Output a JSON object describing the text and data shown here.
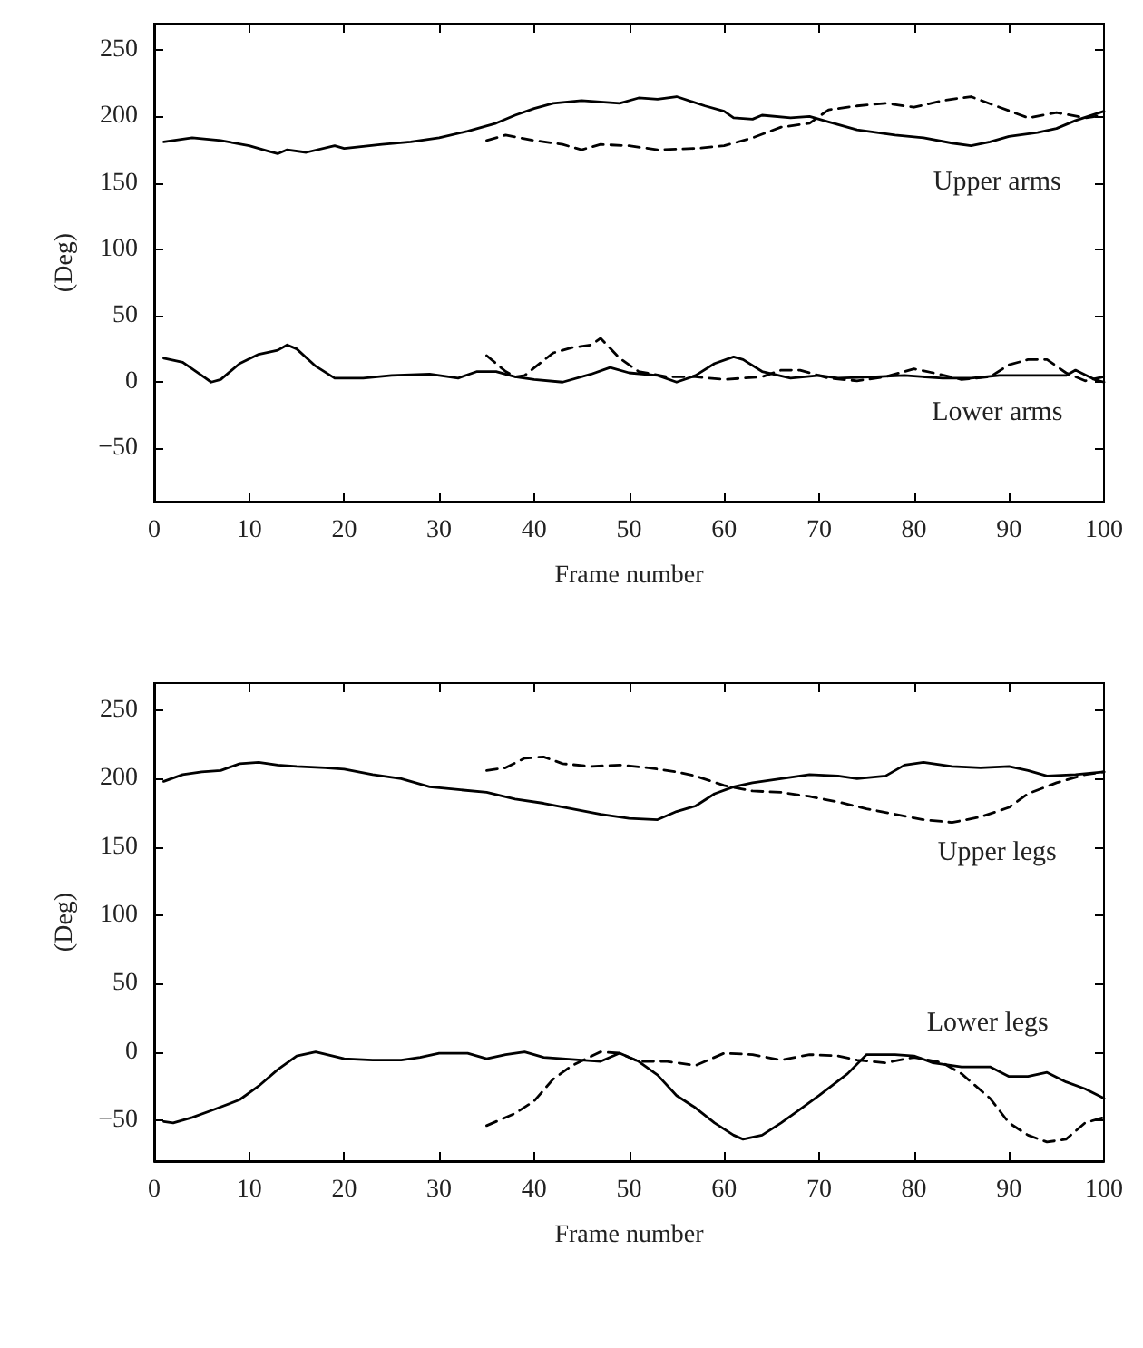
{
  "chart_data": [
    {
      "type": "line",
      "xlabel": "Frame number",
      "ylabel": "(Deg)",
      "xlim": [
        0,
        100
      ],
      "xticks": [
        0,
        10,
        20,
        30,
        40,
        50,
        60,
        70,
        80,
        90,
        100
      ],
      "ylim": [
        -90,
        270
      ],
      "yticks": [
        -50,
        0,
        50,
        100,
        150,
        200,
        250
      ],
      "grid": false,
      "marker": "none",
      "series": [
        {
          "color": "#000000",
          "line_style": "solid",
          "x": [
            1,
            4,
            7,
            10,
            12,
            13,
            14,
            16,
            19,
            20,
            24,
            27,
            30,
            33,
            36,
            38,
            40,
            42,
            45,
            47,
            49,
            51,
            53,
            55,
            58,
            60,
            61,
            63,
            64,
            67,
            69,
            71,
            74,
            78,
            81,
            84,
            86,
            88,
            90,
            93,
            95,
            97,
            100
          ],
          "values": [
            181,
            184,
            182,
            178,
            174,
            172,
            175,
            173,
            178,
            176,
            179,
            181,
            184,
            189,
            195,
            201,
            206,
            210,
            212,
            211,
            210,
            214,
            213,
            215,
            208,
            204,
            199,
            198,
            201,
            199,
            200,
            196,
            190,
            186,
            184,
            180,
            178,
            181,
            185,
            188,
            191,
            197,
            204
          ]
        },
        {
          "color": "#000000",
          "line_style": "dashed",
          "x": [
            35,
            37,
            40,
            43,
            45,
            47,
            50,
            53,
            57,
            60,
            63,
            66,
            69,
            71,
            74,
            77,
            80,
            83,
            86,
            89,
            92,
            95,
            98,
            100
          ],
          "values": [
            182,
            186,
            182,
            179,
            175,
            179,
            178,
            175,
            176,
            178,
            184,
            192,
            195,
            205,
            208,
            210,
            207,
            212,
            215,
            207,
            199,
            203,
            199,
            201
          ]
        },
        {
          "color": "#000000",
          "line_style": "solid",
          "x": [
            1,
            3,
            5,
            6,
            7,
            9,
            11,
            13,
            14,
            15,
            17,
            19,
            22,
            25,
            29,
            32,
            34,
            36,
            38,
            40,
            43,
            46,
            48,
            50,
            53,
            55,
            57,
            59,
            61,
            62,
            64,
            67,
            70,
            72,
            76,
            79,
            83,
            86,
            89,
            93,
            96,
            97,
            99,
            100
          ],
          "values": [
            18,
            15,
            5,
            0,
            2,
            14,
            21,
            24,
            28,
            25,
            12,
            3,
            3,
            5,
            6,
            3,
            8,
            8,
            4,
            2,
            0,
            6,
            11,
            7,
            5,
            0,
            5,
            14,
            19,
            17,
            8,
            3,
            5,
            3,
            4,
            5,
            3,
            3,
            5,
            5,
            5,
            9,
            2,
            0
          ]
        },
        {
          "color": "#000000",
          "line_style": "dashed",
          "x": [
            35,
            37,
            38,
            39,
            42,
            44,
            46,
            47,
            49,
            51,
            54,
            57,
            60,
            64,
            66,
            68,
            71,
            74,
            77,
            80,
            82,
            85,
            88,
            90,
            92,
            94,
            96,
            98,
            100
          ],
          "values": [
            20,
            8,
            4,
            5,
            22,
            26,
            28,
            33,
            18,
            8,
            4,
            4,
            2,
            4,
            9,
            9,
            3,
            1,
            4,
            10,
            7,
            2,
            4,
            13,
            17,
            17,
            7,
            1,
            4
          ]
        }
      ],
      "annotations": [
        "Upper arms",
        "Lower arms"
      ]
    },
    {
      "type": "line",
      "xlabel": "Frame number",
      "ylabel": "(Deg)",
      "xlim": [
        0,
        100
      ],
      "xticks": [
        0,
        10,
        20,
        30,
        40,
        50,
        60,
        70,
        80,
        90,
        100
      ],
      "ylim": [
        -80,
        270
      ],
      "yticks": [
        -50,
        0,
        50,
        100,
        150,
        200,
        250
      ],
      "grid": false,
      "marker": "none",
      "series": [
        {
          "color": "#000000",
          "line_style": "solid",
          "x": [
            1,
            3,
            5,
            7,
            9,
            11,
            13,
            15,
            18,
            20,
            23,
            26,
            29,
            32,
            35,
            38,
            41,
            44,
            47,
            50,
            53,
            55,
            57,
            59,
            61,
            63,
            66,
            69,
            72,
            74,
            77,
            79,
            81,
            84,
            87,
            90,
            92,
            94,
            97,
            100
          ],
          "values": [
            198,
            203,
            205,
            206,
            211,
            212,
            210,
            209,
            208,
            207,
            203,
            200,
            194,
            192,
            190,
            185,
            182,
            178,
            174,
            171,
            170,
            176,
            180,
            189,
            194,
            197,
            200,
            203,
            202,
            200,
            202,
            210,
            212,
            209,
            208,
            209,
            206,
            202,
            203,
            205
          ]
        },
        {
          "color": "#000000",
          "line_style": "dashed",
          "x": [
            35,
            37,
            39,
            41,
            43,
            46,
            49,
            52,
            55,
            57,
            60,
            63,
            66,
            69,
            72,
            75,
            78,
            81,
            84,
            87,
            90,
            92,
            95,
            98,
            100
          ],
          "values": [
            206,
            208,
            215,
            216,
            211,
            209,
            210,
            208,
            205,
            202,
            195,
            191,
            190,
            187,
            183,
            178,
            174,
            170,
            168,
            172,
            179,
            189,
            197,
            203,
            205
          ]
        },
        {
          "color": "#000000",
          "line_style": "solid",
          "x": [
            1,
            2,
            4,
            6,
            9,
            11,
            13,
            15,
            17,
            20,
            23,
            26,
            28,
            30,
            33,
            35,
            37,
            39,
            41,
            45,
            47,
            49,
            51,
            53,
            55,
            57,
            59,
            61,
            62,
            64,
            66,
            68,
            70,
            73,
            75,
            78,
            80,
            82,
            85,
            88,
            90,
            92,
            94,
            96,
            98,
            100
          ],
          "values": [
            -51,
            -52,
            -48,
            -43,
            -35,
            -25,
            -13,
            -3,
            0,
            -5,
            -6,
            -6,
            -4,
            -1,
            -1,
            -5,
            -2,
            0,
            -4,
            -6,
            -7,
            -1,
            -7,
            -17,
            -32,
            -41,
            -52,
            -61,
            -64,
            -61,
            -52,
            -42,
            -32,
            -16,
            -2,
            -2,
            -3,
            -8,
            -11,
            -11,
            -18,
            -18,
            -15,
            -22,
            -27,
            -34
          ]
        },
        {
          "color": "#000000",
          "line_style": "dashed",
          "x": [
            35,
            38,
            40,
            42,
            44,
            47,
            49,
            51,
            54,
            57,
            60,
            63,
            66,
            69,
            72,
            74,
            77,
            80,
            83,
            85,
            88,
            90,
            92,
            94,
            96,
            98,
            100
          ],
          "values": [
            -54,
            -45,
            -36,
            -20,
            -10,
            0,
            -1,
            -7,
            -7,
            -10,
            -1,
            -2,
            -6,
            -2,
            -3,
            -6,
            -8,
            -4,
            -8,
            -16,
            -34,
            -52,
            -61,
            -66,
            -64,
            -52,
            -48
          ]
        }
      ],
      "annotations": [
        "Upper legs",
        "Lower legs"
      ]
    }
  ]
}
